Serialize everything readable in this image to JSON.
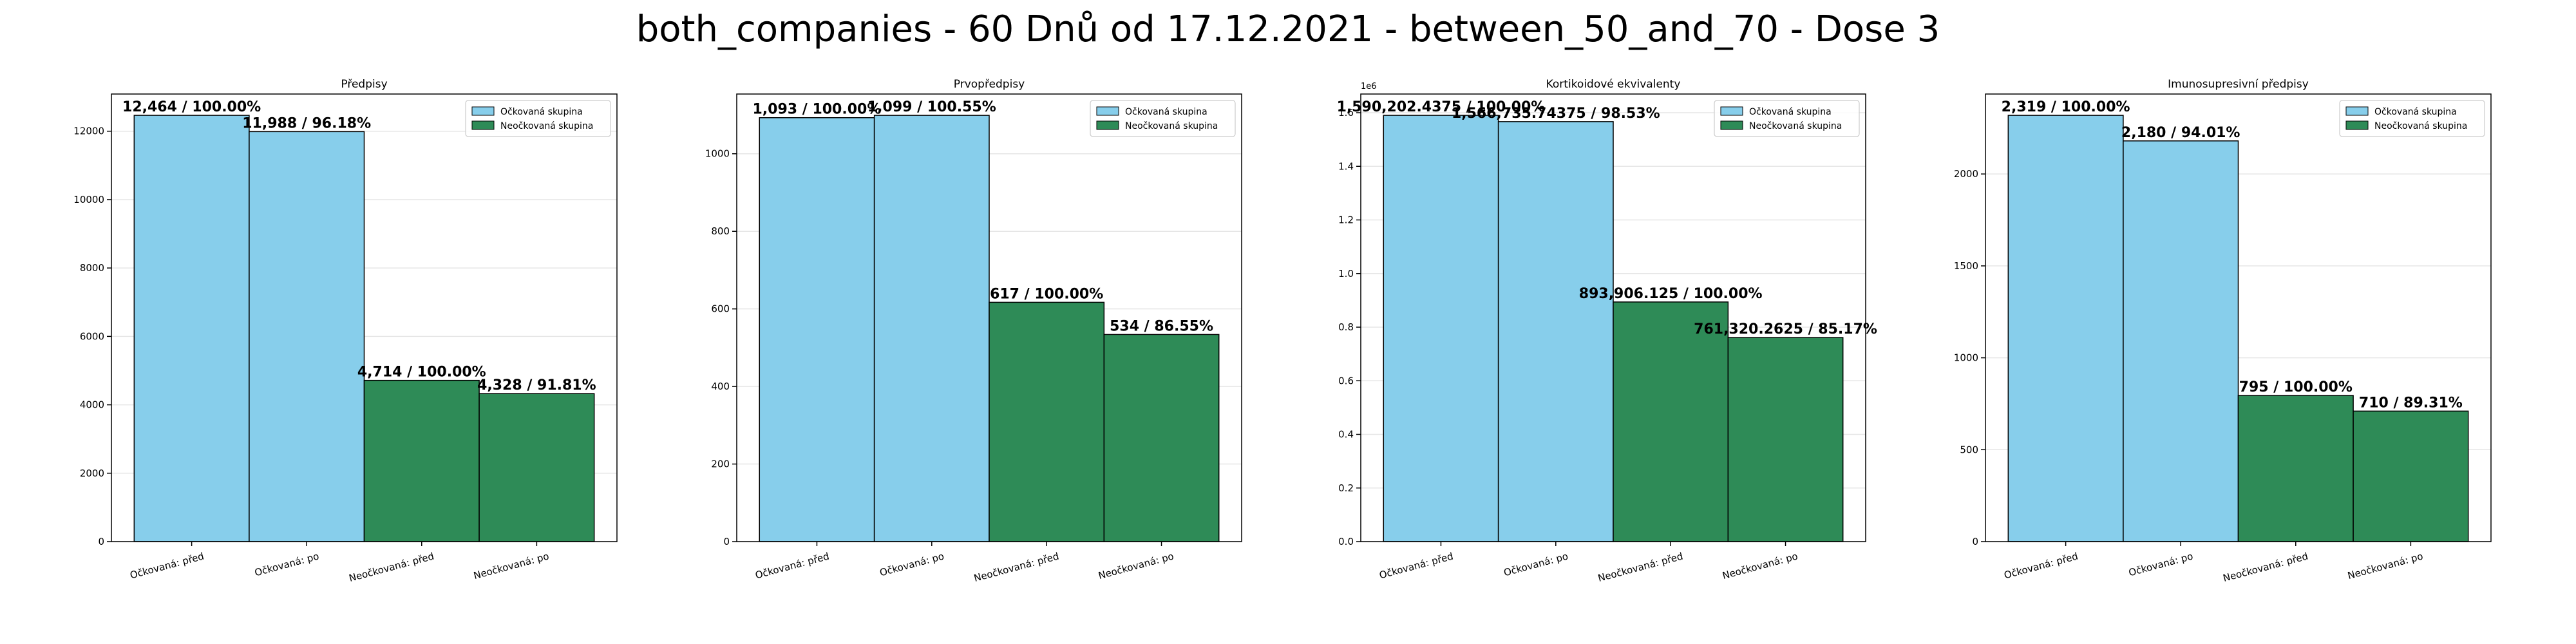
{
  "title": "both_companies - 60 Dnů od 17.12.2021 - between_50_and_70 - Dose 3",
  "colors": {
    "vaccinated": "#87CEEB",
    "unvaccinated": "#2E8B57",
    "edge": "#000000",
    "grid": "#e6e6e6"
  },
  "legend": {
    "placement": "upper right",
    "entries": [
      {
        "label": "Očkovaná skupina",
        "color": "#87CEEB"
      },
      {
        "label": "Neočkovaná skupina",
        "color": "#2E8B57"
      }
    ]
  },
  "chart_data": [
    {
      "type": "bar",
      "title": "Předpisy",
      "categories": [
        "Očkovaná: před",
        "Očkovaná: po",
        "Neočkovaná: před",
        "Neočkovaná: po"
      ],
      "values": [
        12464,
        11988,
        4714,
        4328
      ],
      "bar_colors": [
        "#87CEEB",
        "#87CEEB",
        "#2E8B57",
        "#2E8B57"
      ],
      "data_labels": [
        "12,464 / 100.00%",
        "11,988 / 96.18%",
        "4,714 / 100.00%",
        "4,328 / 91.81%"
      ],
      "ylim": [
        0,
        13087
      ],
      "yticks": [
        0,
        2000,
        4000,
        6000,
        8000,
        10000,
        12000
      ],
      "ytick_labels": [
        "0",
        "2000",
        "4000",
        "6000",
        "8000",
        "10000",
        "12000"
      ],
      "offset_label": "",
      "grid": "y"
    },
    {
      "type": "bar",
      "title": "Prvopředpisy",
      "categories": [
        "Očkovaná: před",
        "Očkovaná: po",
        "Neočkovaná: před",
        "Neočkovaná: po"
      ],
      "values": [
        1093,
        1099,
        617,
        534
      ],
      "bar_colors": [
        "#87CEEB",
        "#87CEEB",
        "#2E8B57",
        "#2E8B57"
      ],
      "data_labels": [
        "1,093 / 100.00%",
        "1,099 / 100.55%",
        "617 / 100.00%",
        "534 / 86.55%"
      ],
      "ylim": [
        0,
        1154
      ],
      "yticks": [
        0,
        200,
        400,
        600,
        800,
        1000
      ],
      "ytick_labels": [
        "0",
        "200",
        "400",
        "600",
        "800",
        "1000"
      ],
      "offset_label": "",
      "grid": "y"
    },
    {
      "type": "bar",
      "title": "Kortikoidové ekvivalenty",
      "categories": [
        "Očkovaná: před",
        "Očkovaná: po",
        "Neočkovaná: před",
        "Neočkovaná: po"
      ],
      "values": [
        1590202.4375,
        1566735.74375,
        893906.125,
        761320.2625
      ],
      "bar_colors": [
        "#87CEEB",
        "#87CEEB",
        "#2E8B57",
        "#2E8B57"
      ],
      "data_labels": [
        "1,590,202.4375 / 100.00%",
        "1,566,735.74375 / 98.53%",
        "893,906.125 / 100.00%",
        "761,320.2625 / 85.17%"
      ],
      "ylim": [
        0,
        1669712
      ],
      "yticks": [
        0,
        200000,
        400000,
        600000,
        800000,
        1000000,
        1200000,
        1400000,
        1600000
      ],
      "ytick_labels": [
        "0.0",
        "0.2",
        "0.4",
        "0.6",
        "0.8",
        "1.0",
        "1.2",
        "1.4",
        "1.6"
      ],
      "offset_label": "1e6",
      "grid": "y"
    },
    {
      "type": "bar",
      "title": "Imunosupresivní předpisy",
      "categories": [
        "Očkovaná: před",
        "Očkovaná: po",
        "Neočkovaná: před",
        "Neočkovaná: po"
      ],
      "values": [
        2319,
        2180,
        795,
        710
      ],
      "bar_colors": [
        "#87CEEB",
        "#87CEEB",
        "#2E8B57",
        "#2E8B57"
      ],
      "data_labels": [
        "2,319 / 100.00%",
        "2,180 / 94.01%",
        "795 / 100.00%",
        "710 / 89.31%"
      ],
      "ylim": [
        0,
        2435
      ],
      "yticks": [
        0,
        500,
        1000,
        1500,
        2000
      ],
      "ytick_labels": [
        "0",
        "500",
        "1000",
        "1500",
        "2000"
      ],
      "offset_label": "",
      "grid": "y"
    }
  ]
}
